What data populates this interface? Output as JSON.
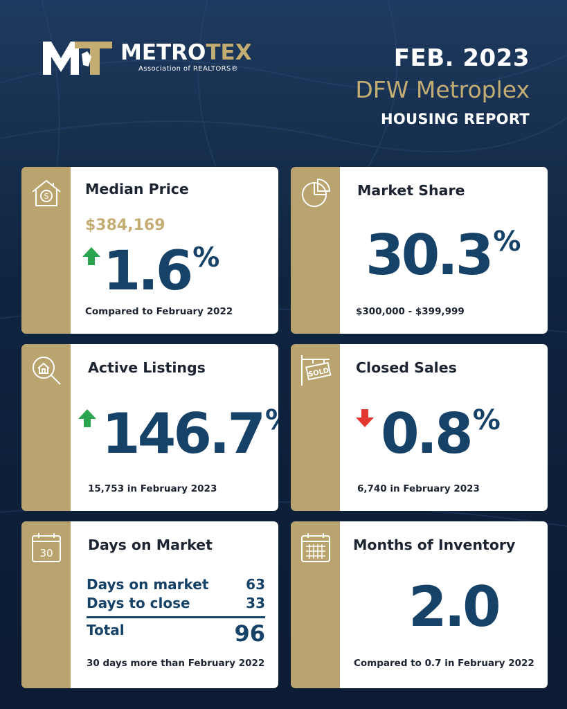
{
  "header": {
    "logo_metro": "METRO",
    "logo_tex": "TEX",
    "logo_sub": "Association of REALTORS®",
    "date": "FEB. 2023",
    "region": "DFW Metroplex",
    "report": "HOUSING REPORT"
  },
  "colors": {
    "gold": "#b9a36e",
    "navy": "#174268",
    "up": "#2aa44f",
    "down": "#e2382f"
  },
  "cards": {
    "median_price": {
      "icon": "house-dollar-icon",
      "title": "Median Price",
      "price": "$384,169",
      "change": "1.6",
      "unit": "%",
      "direction": "up",
      "footnote": "Compared to February 2022"
    },
    "market_share": {
      "icon": "pie-chart-icon",
      "title": "Market Share",
      "value": "30.3",
      "unit": "%",
      "footnote": "$300,000 - $399,999"
    },
    "active_listings": {
      "icon": "house-search-icon",
      "title": "Active Listings",
      "change": "146.7",
      "unit": "%",
      "direction": "up",
      "footnote": "15,753 in February 2023"
    },
    "closed_sales": {
      "icon": "sold-sign-icon",
      "title": "Closed Sales",
      "change": "0.8",
      "unit": "%",
      "direction": "down",
      "footnote": "6,740 in February 2023"
    },
    "days_on_market": {
      "icon": "calendar-30-icon",
      "title": "Days on Market",
      "calendar_number": "30",
      "rows": [
        {
          "label": "Days on market",
          "value": "63"
        },
        {
          "label": "Days to close",
          "value": "33"
        }
      ],
      "total_label": "Total",
      "total_value": "96",
      "footnote": "30 days more than February 2022"
    },
    "months_inventory": {
      "icon": "calendar-grid-icon",
      "title": "Months of Inventory",
      "value": "2.0",
      "footnote": "Compared to 0.7 in February 2022"
    }
  }
}
